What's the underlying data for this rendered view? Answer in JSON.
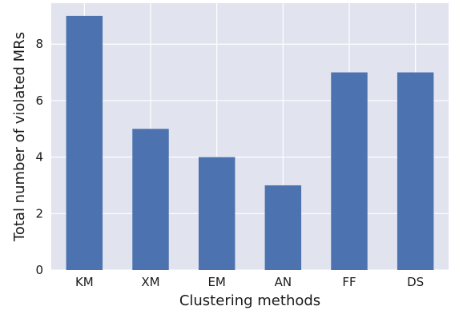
{
  "chart_data": {
    "type": "bar",
    "categories": [
      "KM",
      "XM",
      "EM",
      "AN",
      "FF",
      "DS"
    ],
    "values": [
      9,
      5,
      4,
      3,
      7,
      7
    ],
    "title": "",
    "xlabel": "Clustering methods",
    "ylabel": "Total number of violated MRs",
    "ylim": [
      0,
      9.45
    ],
    "yticks": [
      0,
      2,
      4,
      6,
      8
    ],
    "grid": true,
    "colors": {
      "bar": "#4c72b0",
      "plot_background": "#e1e3ef",
      "grid": "#ffffff"
    }
  }
}
